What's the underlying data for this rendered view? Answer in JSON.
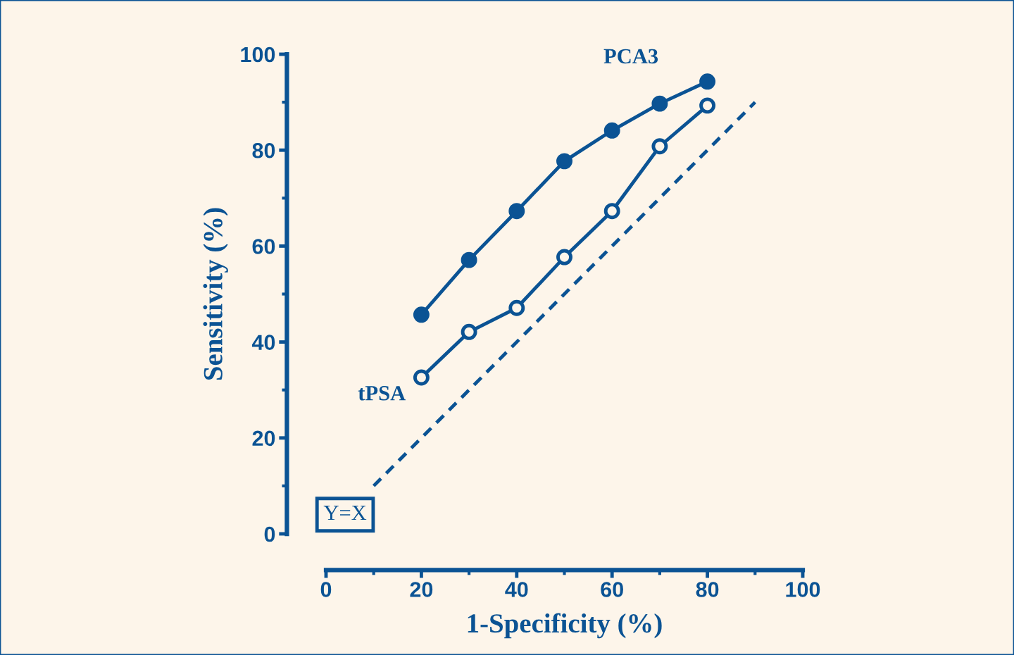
{
  "chart_data": {
    "type": "line",
    "xlabel": "1-Specificity (%)",
    "ylabel": "Sensitivity (%)",
    "xlim": [
      0,
      100
    ],
    "ylim": [
      0,
      100
    ],
    "xticks": [
      0,
      20,
      40,
      60,
      80,
      100
    ],
    "yticks": [
      0,
      20,
      40,
      60,
      80,
      100
    ],
    "grid": false,
    "legend": false,
    "marker": "circle",
    "series": [
      {
        "name": "PCA3",
        "color": "#0b5394",
        "x": [
          20,
          30,
          40,
          50,
          60,
          70,
          80
        ],
        "values": [
          45.7,
          57.1,
          67.3,
          77.7,
          84.1,
          89.7,
          94.3
        ]
      },
      {
        "name": "tPSA",
        "color": "#0b5394",
        "x": [
          20,
          30,
          40,
          50,
          60,
          70,
          80
        ],
        "values": [
          32.6,
          42.1,
          47.1,
          57.7,
          67.3,
          80.8,
          89.3
        ]
      },
      {
        "color": "#0b5394",
        "x": [
          10,
          90
        ],
        "values": [
          10,
          90
        ],
        "marker": "none",
        "line_style": "dashed"
      }
    ],
    "annotations": [
      "Y=X"
    ]
  }
}
